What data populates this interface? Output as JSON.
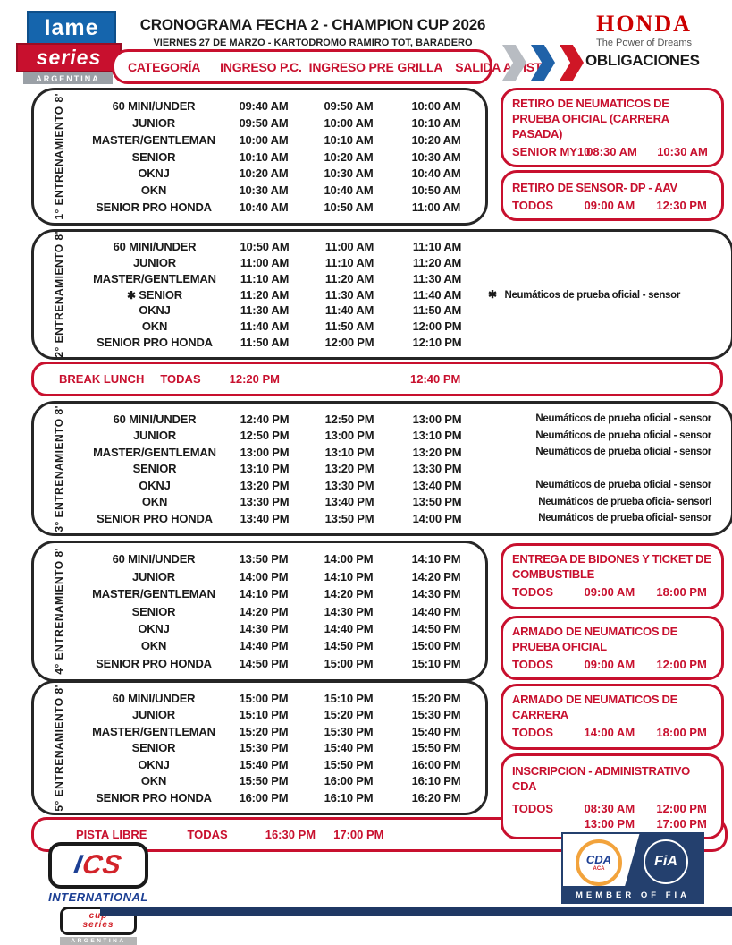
{
  "header": {
    "logo": {
      "line1": "Iame",
      "line2": "series",
      "line3": "ARGENTINA"
    },
    "title": "CRONOGRAMA FECHA 2 - CHAMPION CUP 2026",
    "subtitle": "VIERNES 27 DE MARZO - KARTODROMO RAMIRO TOT, BARADERO",
    "honda": {
      "name": "HONDA",
      "tagline": "The Power of Dreams"
    },
    "columns": {
      "c1": "CATEGORÍA",
      "c2": "INGRESO P.C.",
      "c3": "INGRESO PRE GRILLA",
      "c4": "SALIDA A PISTA"
    },
    "obligaciones_label": "OBLIGACIONES"
  },
  "symbols": {
    "star": "✱"
  },
  "sessions": [
    {
      "label": "1° ENTRENAMIENTO 8'",
      "rows": [
        {
          "category": "60 MINI/UNDER",
          "ingreso_pc": "09:40 AM",
          "ingreso_pre_grilla": "09:50 AM",
          "salida_a_pista": "10:00 AM"
        },
        {
          "category": "JUNIOR",
          "ingreso_pc": "09:50 AM",
          "ingreso_pre_grilla": "10:00 AM",
          "salida_a_pista": "10:10 AM"
        },
        {
          "category": "MASTER/GENTLEMAN",
          "ingreso_pc": "10:00 AM",
          "ingreso_pre_grilla": "10:10 AM",
          "salida_a_pista": "10:20 AM"
        },
        {
          "category": "SENIOR",
          "ingreso_pc": "10:10 AM",
          "ingreso_pre_grilla": "10:20 AM",
          "salida_a_pista": "10:30 AM"
        },
        {
          "category": "OKNJ",
          "ingreso_pc": "10:20 AM",
          "ingreso_pre_grilla": "10:30 AM",
          "salida_a_pista": "10:40 AM"
        },
        {
          "category": "OKN",
          "ingreso_pc": "10:30 AM",
          "ingreso_pre_grilla": "10:40 AM",
          "salida_a_pista": "10:50 AM"
        },
        {
          "category": "SENIOR PRO HONDA",
          "ingreso_pc": "10:40 AM",
          "ingreso_pre_grilla": "10:50 AM",
          "salida_a_pista": "11:00 AM"
        }
      ]
    },
    {
      "label": "2° ENTRENAMIENTO 8'",
      "rows": [
        {
          "category": "60 MINI/UNDER",
          "ingreso_pc": "10:50 AM",
          "ingreso_pre_grilla": "11:00 AM",
          "salida_a_pista": "11:10 AM"
        },
        {
          "category": "JUNIOR",
          "ingreso_pc": "11:00 AM",
          "ingreso_pre_grilla": "11:10 AM",
          "salida_a_pista": "11:20 AM"
        },
        {
          "category": "MASTER/GENTLEMAN",
          "ingreso_pc": "11:10 AM",
          "ingreso_pre_grilla": "11:20 AM",
          "salida_a_pista": "11:30 AM"
        },
        {
          "category": "SENIOR",
          "star": true,
          "ingreso_pc": "11:20 AM",
          "ingreso_pre_grilla": "11:30 AM",
          "salida_a_pista": "11:40 AM",
          "note_star": true,
          "note": "Neumáticos de prueba oficial - sensor"
        },
        {
          "category": "OKNJ",
          "ingreso_pc": "11:30 AM",
          "ingreso_pre_grilla": "11:40 AM",
          "salida_a_pista": "11:50 AM"
        },
        {
          "category": "OKN",
          "ingreso_pc": "11:40 AM",
          "ingreso_pre_grilla": "11:50 AM",
          "salida_a_pista": "12:00 PM"
        },
        {
          "category": "SENIOR PRO HONDA",
          "ingreso_pc": "11:50 AM",
          "ingreso_pre_grilla": "12:00 PM",
          "salida_a_pista": "12:10 PM"
        }
      ]
    },
    {
      "label": "3° ENTRENAMIENTO 8'",
      "rows": [
        {
          "category": "60 MINI/UNDER",
          "ingreso_pc": "12:40 PM",
          "ingreso_pre_grilla": "12:50 PM",
          "salida_a_pista": "13:00 PM",
          "note": "Neumáticos de prueba oficial - sensor"
        },
        {
          "category": "JUNIOR",
          "ingreso_pc": "12:50 PM",
          "ingreso_pre_grilla": "13:00 PM",
          "salida_a_pista": "13:10 PM",
          "note": "Neumáticos de prueba oficial - sensor"
        },
        {
          "category": "MASTER/GENTLEMAN",
          "ingreso_pc": "13:00 PM",
          "ingreso_pre_grilla": "13:10 PM",
          "salida_a_pista": "13:20 PM",
          "note": "Neumáticos de prueba oficial - sensor"
        },
        {
          "category": "SENIOR",
          "ingreso_pc": "13:10 PM",
          "ingreso_pre_grilla": "13:20 PM",
          "salida_a_pista": "13:30 PM"
        },
        {
          "category": "OKNJ",
          "ingreso_pc": "13:20 PM",
          "ingreso_pre_grilla": "13:30 PM",
          "salida_a_pista": "13:40 PM",
          "note": "Neumáticos de prueba oficial - sensor"
        },
        {
          "category": "OKN",
          "ingreso_pc": "13:30 PM",
          "ingreso_pre_grilla": "13:40 PM",
          "salida_a_pista": "13:50 PM",
          "note": "Neumáticos de prueba oficia- sensorl"
        },
        {
          "category": "SENIOR PRO HONDA",
          "ingreso_pc": "13:40 PM",
          "ingreso_pre_grilla": "13:50 PM",
          "salida_a_pista": "14:00 PM",
          "note": "Neumáticos de prueba oficial- sensor"
        }
      ]
    },
    {
      "label": "4° ENTRENAMIENTO 8'",
      "rows": [
        {
          "category": "60 MINI/UNDER",
          "ingreso_pc": "13:50 PM",
          "ingreso_pre_grilla": "14:00 PM",
          "salida_a_pista": "14:10 PM"
        },
        {
          "category": "JUNIOR",
          "ingreso_pc": "14:00 PM",
          "ingreso_pre_grilla": "14:10 PM",
          "salida_a_pista": "14:20 PM"
        },
        {
          "category": "MASTER/GENTLEMAN",
          "ingreso_pc": "14:10 PM",
          "ingreso_pre_grilla": "14:20 PM",
          "salida_a_pista": "14:30 PM"
        },
        {
          "category": "SENIOR",
          "ingreso_pc": "14:20 PM",
          "ingreso_pre_grilla": "14:30 PM",
          "salida_a_pista": "14:40 PM"
        },
        {
          "category": "OKNJ",
          "ingreso_pc": "14:30 PM",
          "ingreso_pre_grilla": "14:40 PM",
          "salida_a_pista": "14:50 PM"
        },
        {
          "category": "OKN",
          "ingreso_pc": "14:40 PM",
          "ingreso_pre_grilla": "14:50 PM",
          "salida_a_pista": "15:00 PM"
        },
        {
          "category": "SENIOR PRO HONDA",
          "ingreso_pc": "14:50 PM",
          "ingreso_pre_grilla": "15:00 PM",
          "salida_a_pista": "15:10 PM"
        }
      ]
    },
    {
      "label": "5° ENTRENAMIENTO 8'",
      "rows": [
        {
          "category": "60 MINI/UNDER",
          "ingreso_pc": "15:00 PM",
          "ingreso_pre_grilla": "15:10 PM",
          "salida_a_pista": "15:20 PM"
        },
        {
          "category": "JUNIOR",
          "ingreso_pc": "15:10 PM",
          "ingreso_pre_grilla": "15:20 PM",
          "salida_a_pista": "15:30 PM"
        },
        {
          "category": "MASTER/GENTLEMAN",
          "ingreso_pc": "15:20 PM",
          "ingreso_pre_grilla": "15:30 PM",
          "salida_a_pista": "15:40 PM"
        },
        {
          "category": "SENIOR",
          "ingreso_pc": "15:30 PM",
          "ingreso_pre_grilla": "15:40 PM",
          "salida_a_pista": "15:50 PM"
        },
        {
          "category": "OKNJ",
          "ingreso_pc": "15:40 PM",
          "ingreso_pre_grilla": "15:50 PM",
          "salida_a_pista": "16:00 PM"
        },
        {
          "category": "OKN",
          "ingreso_pc": "15:50 PM",
          "ingreso_pre_grilla": "16:00 PM",
          "salida_a_pista": "16:10 PM"
        },
        {
          "category": "SENIOR PRO HONDA",
          "ingreso_pc": "16:00 PM",
          "ingreso_pre_grilla": "16:10 PM",
          "salida_a_pista": "16:20 PM"
        }
      ]
    }
  ],
  "bars": {
    "break": {
      "label": "BREAK LUNCH",
      "who": "TODAS",
      "start": "12:20 PM",
      "end": "12:40 PM"
    },
    "pista": {
      "label": "PISTA LIBRE",
      "who": "TODAS",
      "start": "16:30 PM",
      "end": "17:00 PM"
    }
  },
  "obligations": [
    {
      "title": "RETIRO DE NEUMATICOS DE PRUEBA OFICIAL (CARRERA PASADA)",
      "who": "SENIOR MY10",
      "schedule": [
        {
          "start": "08:30 AM",
          "end": "10:30 AM"
        }
      ]
    },
    {
      "title": "RETIRO DE SENSOR- DP - AAV",
      "who": "TODOS",
      "schedule": [
        {
          "start": "09:00 AM",
          "end": "12:30 PM"
        }
      ]
    },
    {
      "title": "ENTREGA DE BIDONES Y TICKET DE COMBUSTIBLE",
      "who": "TODOS",
      "schedule": [
        {
          "start": "09:00 AM",
          "end": "18:00 PM"
        }
      ]
    },
    {
      "title": "ARMADO DE NEUMATICOS DE PRUEBA OFICIAL",
      "who": "TODOS",
      "schedule": [
        {
          "start": "09:00 AM",
          "end": "12:00 PM"
        }
      ]
    },
    {
      "title": "ARMADO DE NEUMATICOS DE CARRERA",
      "who": "TODOS",
      "schedule": [
        {
          "start": "14:00 AM",
          "end": "18:00 PM"
        }
      ]
    },
    {
      "title": "INSCRIPCION - ADMINISTRATIVO CDA",
      "who": "TODOS",
      "schedule": [
        {
          "start": "08:30 AM",
          "end": "12:00 PM"
        },
        {
          "start": "13:00 PM",
          "end": "17:00 PM"
        }
      ]
    }
  ],
  "footer": {
    "ics": {
      "acronym_i": "I",
      "acronym_cs": "CS",
      "line1": "INTERNATIONAL",
      "cup": "cup",
      "series": "series",
      "country": "ARGENTINA"
    },
    "fia": {
      "cda": "CDA",
      "aca": "ACA",
      "fia": "FiA",
      "member": "MEMBER OF FIA"
    }
  },
  "colors": {
    "red": "#c8102e",
    "blue": "#1565ad",
    "navy": "#24406e",
    "honda_red": "#cc0000"
  }
}
